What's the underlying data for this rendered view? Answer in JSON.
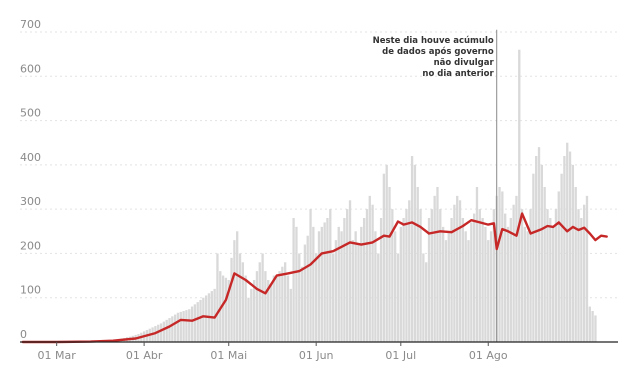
{
  "chart_data": {
    "type": "bar",
    "bar_color": "#d9d9d9",
    "line_color": "#c62828",
    "annotation_color": "#8a8a8a",
    "grid": true,
    "ylim": [
      0,
      700
    ],
    "yticks": [
      0,
      100,
      200,
      300,
      400,
      500,
      600,
      700
    ],
    "ytick_labels": [
      "0",
      "100",
      "200",
      "300",
      "400",
      "500",
      "600",
      "700"
    ],
    "xlim_day": [
      -13,
      199
    ],
    "xticks": [
      {
        "day": 0,
        "label": "01 Mar"
      },
      {
        "day": 31,
        "label": "01 Abr"
      },
      {
        "day": 61,
        "label": "01 Mai"
      },
      {
        "day": 92,
        "label": "01 Jun"
      },
      {
        "day": 122,
        "label": "01 Jul"
      },
      {
        "day": 153,
        "label": "01 Ago"
      }
    ],
    "annotation": {
      "day": 156,
      "lines": [
        "Neste dia houve acúmulo",
        "de dados após governo",
        "não divulgar",
        "no dia anterior"
      ]
    },
    "daily_start_day": -12,
    "daily_values": [
      0,
      0,
      0,
      0,
      0,
      0,
      0,
      0,
      0,
      0,
      0,
      0,
      0,
      0,
      0,
      0,
      0,
      0,
      0,
      0,
      0,
      0,
      1,
      0,
      1,
      1,
      2,
      1,
      2,
      2,
      3,
      3,
      4,
      5,
      7,
      8,
      9,
      11,
      12,
      14,
      16,
      18,
      21,
      24,
      27,
      30,
      33,
      36,
      39,
      42,
      46,
      50,
      54,
      58,
      62,
      66,
      68,
      70,
      72,
      74,
      80,
      85,
      90,
      95,
      100,
      105,
      110,
      115,
      120,
      200,
      160,
      150,
      145,
      140,
      190,
      230,
      250,
      200,
      180,
      150,
      100,
      120,
      140,
      160,
      180,
      200,
      160,
      140,
      130,
      150,
      150,
      160,
      170,
      180,
      150,
      120,
      280,
      260,
      200,
      170,
      220,
      240,
      300,
      260,
      200,
      250,
      260,
      270,
      280,
      300,
      200,
      230,
      260,
      250,
      280,
      300,
      320,
      230,
      250,
      220,
      260,
      280,
      300,
      330,
      310,
      250,
      200,
      280,
      380,
      400,
      350,
      300,
      250,
      200,
      260,
      280,
      300,
      320,
      420,
      400,
      350,
      300,
      200,
      180,
      280,
      300,
      330,
      350,
      300,
      260,
      230,
      250,
      280,
      310,
      330,
      320,
      280,
      250,
      230,
      270,
      290,
      350,
      300,
      280,
      260,
      230,
      250,
      300,
      330,
      350,
      340,
      290,
      260,
      280,
      310,
      330,
      660,
      300,
      260,
      250,
      300,
      380,
      420,
      440,
      400,
      350,
      300,
      280,
      260,
      300,
      340,
      380,
      420,
      450,
      430,
      400,
      350,
      300,
      280,
      310,
      330,
      80,
      70,
      60
    ],
    "avg_points": [
      [
        -12,
        0
      ],
      [
        0,
        0
      ],
      [
        12,
        1
      ],
      [
        20,
        3
      ],
      [
        28,
        8
      ],
      [
        35,
        20
      ],
      [
        40,
        35
      ],
      [
        44,
        50
      ],
      [
        48,
        48
      ],
      [
        52,
        58
      ],
      [
        56,
        55
      ],
      [
        60,
        95
      ],
      [
        63,
        155
      ],
      [
        67,
        140
      ],
      [
        71,
        120
      ],
      [
        74,
        110
      ],
      [
        78,
        150
      ],
      [
        82,
        155
      ],
      [
        86,
        160
      ],
      [
        90,
        175
      ],
      [
        94,
        200
      ],
      [
        98,
        205
      ],
      [
        101,
        215
      ],
      [
        104,
        225
      ],
      [
        108,
        220
      ],
      [
        112,
        225
      ],
      [
        116,
        240
      ],
      [
        118,
        238
      ],
      [
        121,
        272
      ],
      [
        123,
        265
      ],
      [
        126,
        270
      ],
      [
        129,
        260
      ],
      [
        132,
        245
      ],
      [
        136,
        250
      ],
      [
        140,
        248
      ],
      [
        144,
        262
      ],
      [
        147,
        275
      ],
      [
        150,
        270
      ],
      [
        153,
        265
      ],
      [
        155,
        268
      ],
      [
        156,
        210
      ],
      [
        158,
        255
      ],
      [
        160,
        250
      ],
      [
        163,
        240
      ],
      [
        165,
        290
      ],
      [
        168,
        245
      ],
      [
        172,
        255
      ],
      [
        174,
        262
      ],
      [
        176,
        260
      ],
      [
        178,
        270
      ],
      [
        181,
        250
      ],
      [
        183,
        260
      ],
      [
        185,
        253
      ],
      [
        187,
        258
      ],
      [
        189,
        245
      ],
      [
        191,
        230
      ],
      [
        193,
        240
      ],
      [
        195,
        238
      ]
    ]
  }
}
